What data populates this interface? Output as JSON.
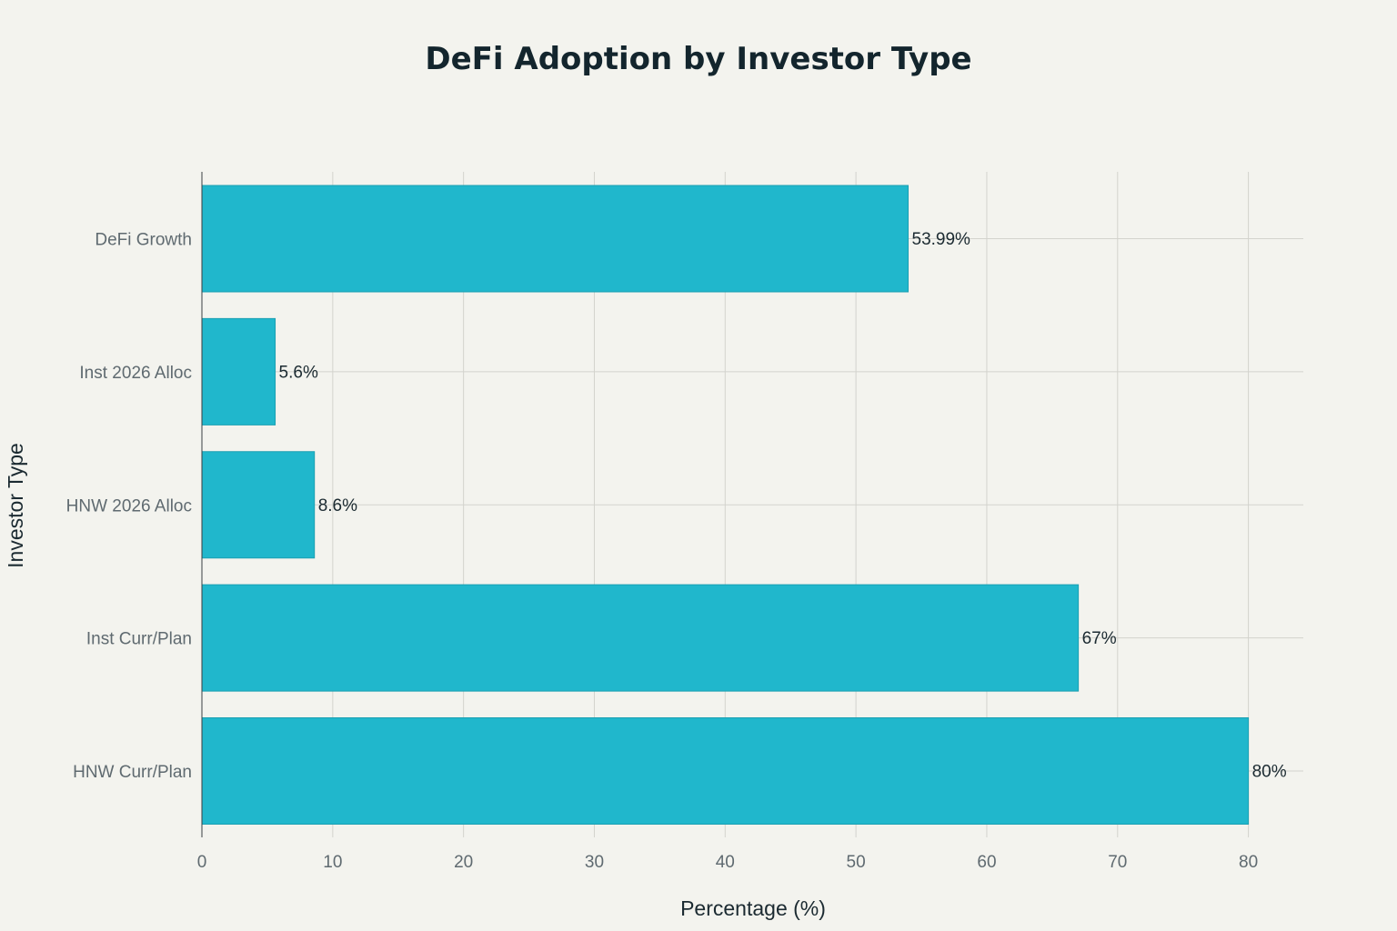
{
  "chart_data": {
    "type": "bar",
    "orientation": "horizontal",
    "title": "DeFi Adoption by Investor Type",
    "xlabel": "Percentage (%)",
    "ylabel": "Investor Type",
    "categories": [
      "DeFi Growth",
      "Inst 2026 Alloc",
      "HNW 2026 Alloc",
      "Inst Curr/Plan",
      "HNW Curr/Plan"
    ],
    "values": [
      53.99,
      5.6,
      8.6,
      67,
      80
    ],
    "data_labels": [
      "53.99%",
      "5.6%",
      "8.6%",
      "67%",
      "80%"
    ],
    "xlim": [
      0,
      84.2
    ],
    "xticks": [
      0,
      10,
      20,
      30,
      40,
      50,
      60,
      70,
      80
    ],
    "grid": true,
    "legend": "none",
    "colors": {
      "bar": "#20b7cc",
      "bar_edge": "#1a9fb2",
      "background": "#f3f3ee",
      "grid": "#d3d3cd"
    }
  }
}
